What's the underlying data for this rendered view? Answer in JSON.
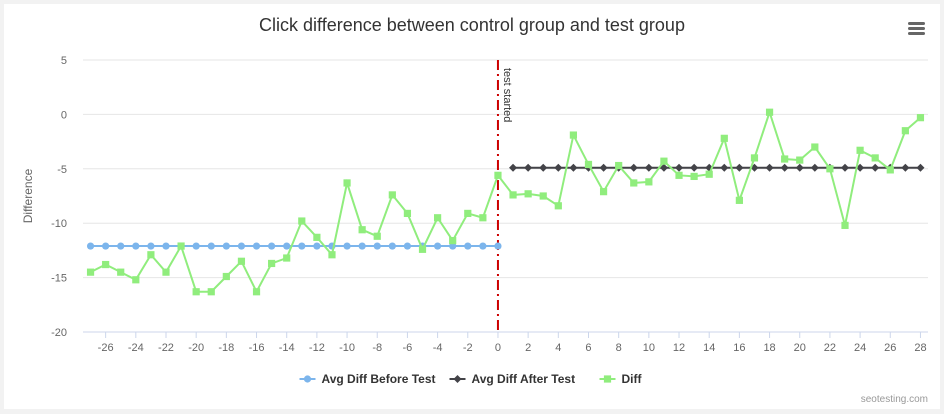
{
  "chart_data": {
    "type": "line",
    "title": "Click difference between control group and test group",
    "ylabel": "Difference",
    "xlabel": "",
    "xlim": [
      -27.5,
      28.5
    ],
    "ylim": [
      -20,
      5
    ],
    "x_ticks": [
      -26,
      -24,
      -22,
      -20,
      -18,
      -16,
      -14,
      -12,
      -10,
      -8,
      -6,
      -4,
      -2,
      0,
      2,
      4,
      6,
      8,
      10,
      12,
      14,
      16,
      18,
      20,
      22,
      24,
      26,
      28
    ],
    "y_ticks": [
      -20,
      -15,
      -10,
      -5,
      0,
      5
    ],
    "grid": "horizontal",
    "legend_position": "bottom-center",
    "annotation": {
      "x": 0,
      "label": "test started",
      "color": "#cc0000"
    },
    "series": [
      {
        "name": "Avg Diff Before Test",
        "color": "#7cb5ec",
        "marker": "circle",
        "x": [
          -27,
          -26,
          -25,
          -24,
          -23,
          -22,
          -21,
          -20,
          -19,
          -18,
          -17,
          -16,
          -15,
          -14,
          -13,
          -12,
          -11,
          -10,
          -9,
          -8,
          -7,
          -6,
          -5,
          -4,
          -3,
          -2,
          -1,
          0
        ],
        "y": [
          -12.1,
          -12.1,
          -12.1,
          -12.1,
          -12.1,
          -12.1,
          -12.1,
          -12.1,
          -12.1,
          -12.1,
          -12.1,
          -12.1,
          -12.1,
          -12.1,
          -12.1,
          -12.1,
          -12.1,
          -12.1,
          -12.1,
          -12.1,
          -12.1,
          -12.1,
          -12.1,
          -12.1,
          -12.1,
          -12.1,
          -12.1,
          -12.1
        ]
      },
      {
        "name": "Avg Diff After Test",
        "color": "#434348",
        "marker": "diamond",
        "x": [
          1,
          2,
          3,
          4,
          5,
          6,
          7,
          8,
          9,
          10,
          11,
          12,
          13,
          14,
          15,
          16,
          17,
          18,
          19,
          20,
          21,
          22,
          23,
          24,
          25,
          26,
          27,
          28
        ],
        "y": [
          -4.9,
          -4.9,
          -4.9,
          -4.9,
          -4.9,
          -4.9,
          -4.9,
          -4.9,
          -4.9,
          -4.9,
          -4.9,
          -4.9,
          -4.9,
          -4.9,
          -4.9,
          -4.9,
          -4.9,
          -4.9,
          -4.9,
          -4.9,
          -4.9,
          -4.9,
          -4.9,
          -4.9,
          -4.9,
          -4.9,
          -4.9,
          -4.9
        ]
      },
      {
        "name": "Diff",
        "color": "#90ed7d",
        "marker": "square",
        "x": [
          -27,
          -26,
          -25,
          -24,
          -23,
          -22,
          -21,
          -20,
          -19,
          -18,
          -17,
          -16,
          -15,
          -14,
          -13,
          -12,
          -11,
          -10,
          -9,
          -8,
          -7,
          -6,
          -5,
          -4,
          -3,
          -2,
          -1,
          0,
          1,
          2,
          3,
          4,
          5,
          6,
          7,
          8,
          9,
          10,
          11,
          12,
          13,
          14,
          15,
          16,
          17,
          18,
          19,
          20,
          21,
          22,
          23,
          24,
          25,
          26,
          27,
          28
        ],
        "y": [
          -14.5,
          -13.8,
          -14.5,
          -15.2,
          -12.9,
          -14.5,
          -12.1,
          -16.3,
          -16.3,
          -14.9,
          -13.5,
          -16.3,
          -13.7,
          -13.2,
          -9.8,
          -11.3,
          -12.9,
          -6.3,
          -10.6,
          -11.2,
          -7.4,
          -9.1,
          -12.4,
          -9.5,
          -11.6,
          -9.1,
          -9.5,
          -5.6,
          -7.4,
          -7.3,
          -7.5,
          -8.4,
          -1.9,
          -4.6,
          -7.1,
          -4.7,
          -6.3,
          -6.2,
          -4.3,
          -5.6,
          -5.7,
          -5.5,
          -2.2,
          -7.9,
          -4.0,
          0.2,
          -4.1,
          -4.2,
          -3.0,
          -5.0,
          -10.2,
          -3.3,
          -4.0,
          -5.1,
          -1.5,
          -0.3
        ]
      }
    ]
  },
  "credit": "seotesting.com",
  "menu_icon": "hamburger-menu-icon"
}
